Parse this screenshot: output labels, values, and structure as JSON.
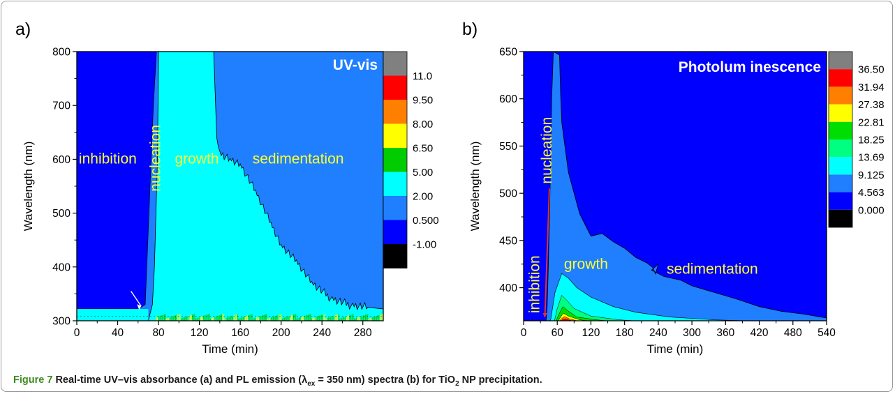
{
  "chart_data": [
    {
      "type": "heatmap",
      "panel_label": "a)",
      "title": "UV-vis",
      "xlabel": "Time (min)",
      "ylabel": "Wavelength (nm)",
      "xlim": [
        0,
        300
      ],
      "ylim": [
        300,
        800
      ],
      "xticks": [
        0,
        40,
        80,
        120,
        160,
        200,
        240,
        280
      ],
      "yticks": [
        300,
        400,
        500,
        600,
        700,
        800
      ],
      "colorbar": {
        "labels": [
          "11.0",
          "9.50",
          "8.00",
          "6.50",
          "5.00",
          "2.00",
          "0.500",
          "-1.00"
        ],
        "colors": [
          "#808080",
          "#ff0000",
          "#ff8000",
          "#ffff00",
          "#00cc00",
          "#00ffff",
          "#1f7fff",
          "#0000ff",
          "#000000"
        ]
      },
      "annotations": [
        {
          "text": "inhibition",
          "x": 0,
          "y": 600
        },
        {
          "text": "nucleation",
          "x": 78,
          "y": 620,
          "rotated": true
        },
        {
          "text": "growth",
          "x": 98,
          "y": 600
        },
        {
          "text": "sedimentation",
          "x": 190,
          "y": 600
        }
      ],
      "regions": {
        "inhibition_edge_x": [
          0,
          60,
          67,
          75,
          78
        ],
        "inhibition_edge_y": [
          322,
          322,
          330,
          700,
          800
        ],
        "growth_boundary_x": [
          80,
          90,
          134,
          137,
          140,
          150,
          160,
          175,
          190,
          200,
          215,
          230,
          250,
          270,
          300
        ],
        "growth_boundary_y": [
          800,
          800,
          800,
          640,
          610,
          600,
          590,
          540,
          480,
          440,
          410,
          370,
          340,
          328,
          322
        ]
      }
    },
    {
      "type": "heatmap",
      "panel_label": "b)",
      "title": "Photolum inescence",
      "xlabel": "Time (min)",
      "ylabel": "Wavelength (nm)",
      "xlim": [
        0,
        540
      ],
      "ylim": [
        365,
        650
      ],
      "xticks": [
        0,
        60,
        120,
        180,
        240,
        300,
        360,
        420,
        480,
        540
      ],
      "yticks": [
        400,
        450,
        500,
        550,
        600,
        650
      ],
      "colorbar": {
        "labels": [
          "36.50",
          "31.94",
          "27.38",
          "22.81",
          "18.25",
          "13.69",
          "9.125",
          "4.563",
          "0.000"
        ],
        "colors": [
          "#808080",
          "#ff0000",
          "#ff8000",
          "#ffff00",
          "#00dd00",
          "#00ff80",
          "#00ffff",
          "#1f7fff",
          "#0000ff",
          "#000000"
        ]
      },
      "annotations": [
        {
          "text": "inhibition",
          "x": 30,
          "y": 400,
          "rotated": true
        },
        {
          "text": "nucleation",
          "x": 50,
          "y": 560,
          "rotated": true
        },
        {
          "text": "growth",
          "x": 70,
          "y": 420
        },
        {
          "text": "sedimentation",
          "x": 250,
          "y": 418
        }
      ]
    }
  ],
  "caption": {
    "lead": "Figure 7",
    "text": "Real-time UV–vis absorbance (a) and PL emission (λ",
    "sub": "ex",
    "text2": " = 350 nm) spectra (b) for TiO",
    "sub2": "2",
    "text3": " NP precipitation."
  }
}
